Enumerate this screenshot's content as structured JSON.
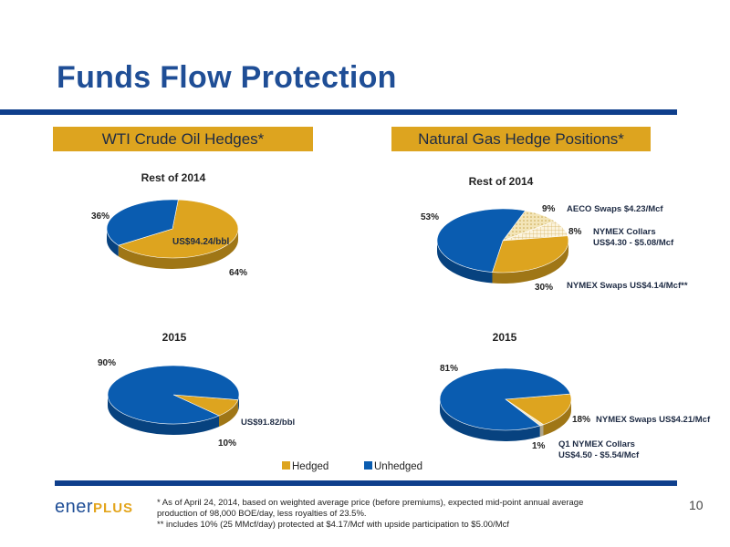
{
  "page": {
    "title": "Funds Flow Protection",
    "page_number": "10",
    "logo_text_a": "ener",
    "logo_text_b": "PLUS",
    "footnotes": [
      "* As of April 24, 2014, based on weighted average price (before premiums), expected  mid-point annual average",
      "production of 98,000 BOE/day, less royalties of 23.5%.",
      "** includes 10% (25 MMcf/day) protected at $4.17/Mcf with upside participation to $5.00/Mcf"
    ]
  },
  "banners": {
    "oil": "WTI Crude Oil Hedges*",
    "gas": "Natural Gas Hedge Positions*"
  },
  "legend": {
    "items": [
      {
        "label": "Hedged",
        "color": "#dda41f"
      },
      {
        "label": "Unhedged",
        "color": "#0a5cb0"
      }
    ]
  },
  "chart_data": [
    {
      "type": "pie",
      "title": "Rest of 2014",
      "slices": [
        {
          "label": "64%",
          "value": 64,
          "color": "#dda41f",
          "note": "US$94.24/bbl"
        },
        {
          "label": "36%",
          "value": 36,
          "color": "#0a5cb0"
        }
      ]
    },
    {
      "type": "pie",
      "title": "Rest of 2014",
      "slices": [
        {
          "label": "9%",
          "value": 9,
          "color": "#ecd9a0",
          "pattern": "dots",
          "note": "AECO Swaps $4.23/Mcf"
        },
        {
          "label": "8%",
          "value": 8,
          "color": "#f3e7c2",
          "pattern": "grid",
          "note": "NYMEX Collars",
          "note2": "US$4.30 - $5.08/Mcf"
        },
        {
          "label": "30%",
          "value": 30,
          "color": "#dda41f",
          "note": "NYMEX Swaps US$4.14/Mcf**"
        },
        {
          "label": "53%",
          "value": 53,
          "color": "#0a5cb0"
        }
      ]
    },
    {
      "type": "pie",
      "title": "2015",
      "slices": [
        {
          "label": "10%",
          "value": 10,
          "color": "#dda41f",
          "note": "US$91.82/bbl"
        },
        {
          "label": "90%",
          "value": 90,
          "color": "#0a5cb0"
        }
      ]
    },
    {
      "type": "pie",
      "title": "2015",
      "slices": [
        {
          "label": "18%",
          "value": 18,
          "color": "#dda41f",
          "note": "NYMEX Swaps US$4.21/Mcf"
        },
        {
          "label": "1%",
          "value": 1,
          "color": "#f3e7c2",
          "note": "Q1 NYMEX Collars",
          "note2": "US$4.50 - $5.54/Mcf"
        },
        {
          "label": "81%",
          "value": 81,
          "color": "#0a5cb0"
        }
      ]
    }
  ]
}
